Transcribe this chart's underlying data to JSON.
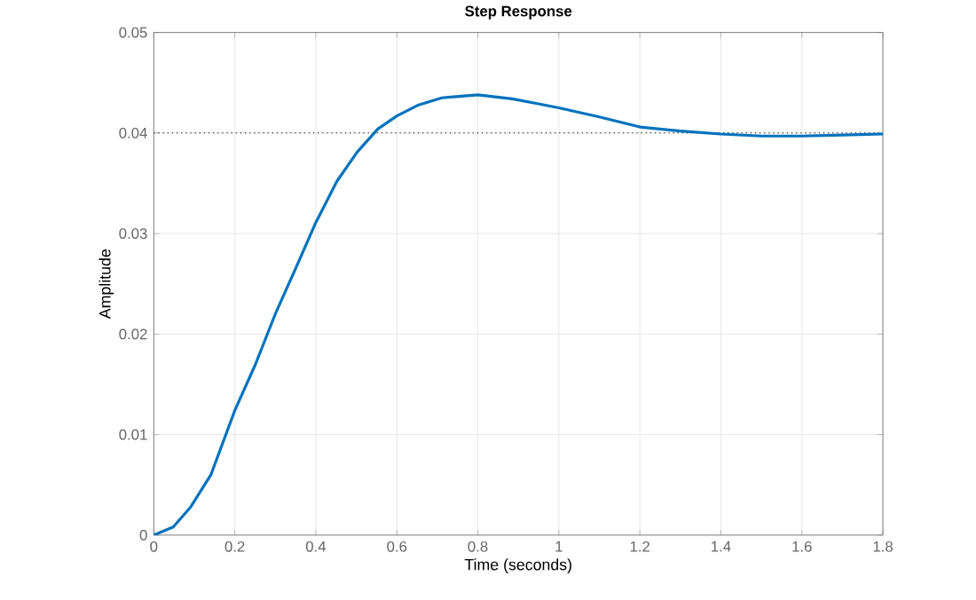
{
  "chart_data": {
    "type": "line",
    "title": "Step Response",
    "xlabel": "Time (seconds)",
    "ylabel": "Amplitude",
    "x": [
      0,
      0.048,
      0.091,
      0.141,
      0.2,
      0.25,
      0.3,
      0.351,
      0.4,
      0.452,
      0.502,
      0.553,
      0.6,
      0.654,
      0.711,
      0.8,
      0.885,
      0.95,
      1.0,
      1.1,
      1.2,
      1.3,
      1.4,
      1.5,
      1.6,
      1.7,
      1.8
    ],
    "series": [
      {
        "color": "#0072bd",
        "values": [
          0,
          0.0008,
          0.0028,
          0.006,
          0.0124,
          0.0169,
          0.022,
          0.0266,
          0.0311,
          0.0352,
          0.0381,
          0.0404,
          0.0417,
          0.0428,
          0.0435,
          0.0438,
          0.0434,
          0.0429,
          0.0425,
          0.0416,
          0.0406,
          0.0402,
          0.0399,
          0.0397,
          0.0397,
          0.0398,
          0.0399
        ]
      }
    ],
    "xlim": [
      0,
      1.8
    ],
    "ylim": [
      0,
      0.05
    ],
    "xticks": [
      0,
      0.2,
      0.4,
      0.6,
      0.8,
      1,
      1.2,
      1.4,
      1.6,
      1.8
    ],
    "yticks": [
      0,
      0.01,
      0.02,
      0.03,
      0.04,
      0.05
    ],
    "grid": true,
    "line_style": "solid",
    "marker": "none",
    "ref_lines": [
      {
        "axis": "y",
        "value": 0.04,
        "color": "#000000",
        "line_style": "dotted"
      }
    ]
  }
}
